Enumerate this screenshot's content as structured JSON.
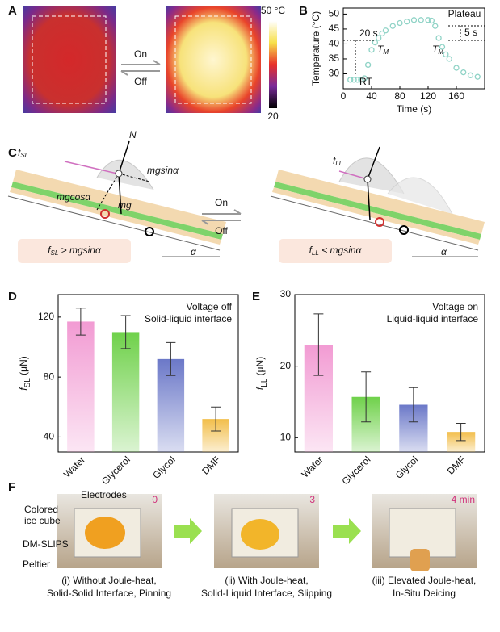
{
  "panel_labels": [
    "A",
    "B",
    "C",
    "D",
    "E",
    "F"
  ],
  "panel_a": {
    "on": "On",
    "off": "Off",
    "colorbar_max": "50 °C",
    "colorbar_min": "20"
  },
  "panel_c": {
    "f_sl": {
      "main": "f",
      "sub": "SL"
    },
    "n": "N",
    "mgsin": "mgsinα",
    "mgcos": "mgcosα",
    "mg": "mg",
    "on": "On",
    "off": "Off",
    "f_ll": {
      "main": "f",
      "sub": "LL"
    },
    "cond_left": {
      "main": "f",
      "sub": "SL",
      "rest": " > mgsinα"
    },
    "cond_right": {
      "main": "f",
      "sub": "LL",
      "rest": " < mgsinα"
    },
    "alpha": "α"
  },
  "panel_f": {
    "electrodes": "Electrodes",
    "ice_cube": [
      "Colored",
      "ice cube"
    ],
    "dm_slips": "DM-SLIPS",
    "peltier": "Peltier",
    "times": [
      "0",
      "3",
      "4 min"
    ],
    "captions": [
      [
        "(i) Without Joule-heat,",
        "Solid-Solid Interface, Pinning"
      ],
      [
        "(ii) With Joule-heat,",
        "Solid-Liquid Interface, Slipping"
      ],
      [
        "(iii) Elevated Joule-heat,",
        "In-Situ Deicing"
      ]
    ]
  },
  "chart_data": [
    {
      "type": "scatter",
      "xlabel": "Time (s)",
      "ylabel": "Temperature (°C)",
      "color": "#8fd3c6",
      "x": [
        10,
        15,
        20,
        25,
        30,
        35,
        40,
        45,
        50,
        55,
        60,
        70,
        80,
        90,
        100,
        110,
        120,
        125,
        130,
        135,
        140,
        145,
        150,
        160,
        170,
        180,
        190
      ],
      "y": [
        28,
        28,
        28,
        28,
        28.5,
        33,
        38,
        40.5,
        42,
        43.5,
        44.5,
        46,
        47,
        47.5,
        48,
        48,
        48,
        47.8,
        46,
        42,
        39,
        36.5,
        35,
        32,
        30.5,
        29.5,
        29
      ],
      "xlim": [
        0,
        200
      ],
      "xticks": [
        0,
        40,
        80,
        120,
        160
      ],
      "ylim": [
        25,
        52
      ],
      "yticks": [
        30,
        35,
        40,
        45,
        50
      ],
      "annotations": {
        "plateau": "Plateau",
        "rise": "20 s",
        "fall": "5 s",
        "rt": "RT",
        "tm": {
          "main": "T",
          "sub": "M"
        }
      }
    },
    {
      "type": "bar",
      "ylabel": {
        "main": "f",
        "sub": "SL",
        "unit": " (μN)"
      },
      "categories": [
        "Water",
        "Glycerol",
        "Glycol",
        "DMF"
      ],
      "values": [
        117,
        110,
        92,
        52
      ],
      "errors": [
        9,
        11,
        11,
        8
      ],
      "colors": [
        "#f29bd3",
        "#6fd14a",
        "#6b78c8",
        "#f2be4a"
      ],
      "ylim": [
        30,
        135
      ],
      "yticks": [
        40,
        80,
        120
      ],
      "annotations": [
        "Voltage off",
        "Solid-liquid interface"
      ]
    },
    {
      "type": "bar",
      "ylabel": {
        "main": "f",
        "sub": "LL",
        "unit": " (μN)"
      },
      "categories": [
        "Water",
        "Glycerol",
        "Glycol",
        "DMF"
      ],
      "values": [
        23,
        15.7,
        14.6,
        10.8
      ],
      "errors": [
        4.3,
        3.5,
        2.4,
        1.2
      ],
      "colors": [
        "#f29bd3",
        "#6fd14a",
        "#6b78c8",
        "#f2be4a"
      ],
      "ylim": [
        8,
        30
      ],
      "yticks": [
        10,
        20,
        30
      ],
      "annotations": [
        "Voltage on",
        "Liquid-liquid interface"
      ]
    }
  ]
}
